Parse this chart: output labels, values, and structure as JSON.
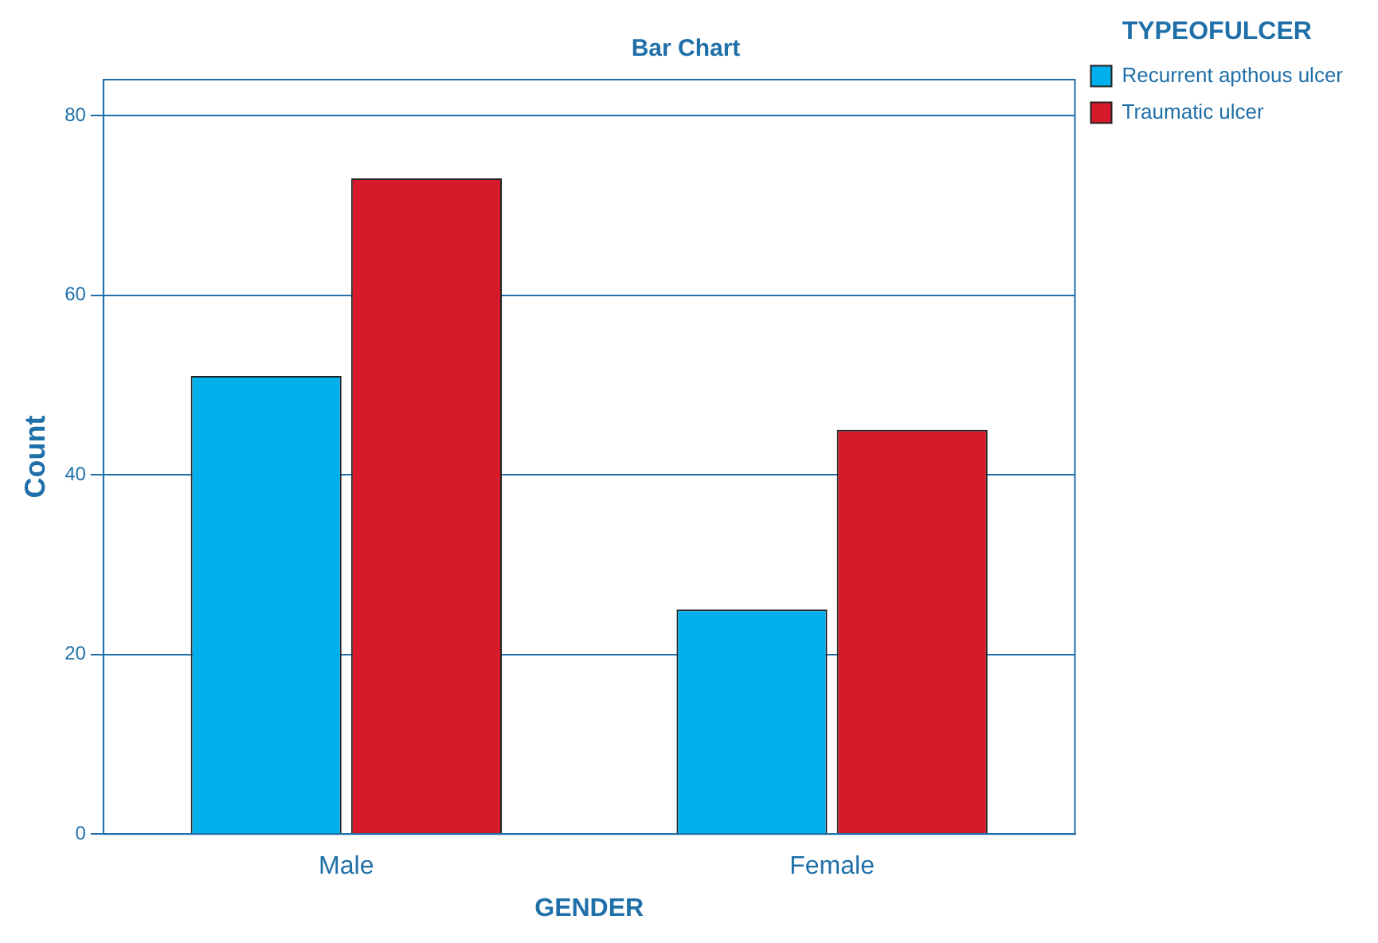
{
  "chart_data": {
    "type": "bar",
    "title": "Bar Chart",
    "xlabel": "GENDER",
    "ylabel": "Count",
    "legend_title": "TYPEOFULCER",
    "categories": [
      "Male",
      "Female"
    ],
    "series": [
      {
        "name": "Recurrent apthous ulcer",
        "color": "#00b0ec",
        "values": [
          51,
          25
        ]
      },
      {
        "name": "Traumatic ulcer",
        "color": "#d61a2c",
        "values": [
          73,
          45
        ]
      }
    ],
    "ylim": [
      0,
      84
    ],
    "yticks": [
      0,
      20,
      40,
      60,
      80
    ],
    "grid": "y",
    "legend": "top right"
  }
}
